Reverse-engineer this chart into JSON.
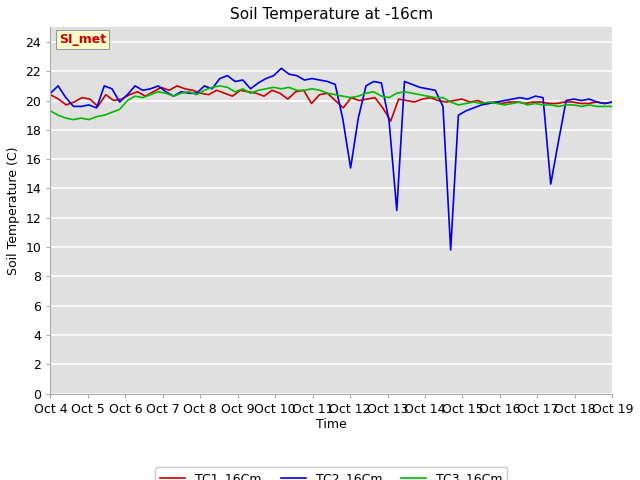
{
  "title": "Soil Temperature at -16cm",
  "xlabel": "Time",
  "ylabel": "Soil Temperature (C)",
  "ylim": [
    0,
    25
  ],
  "yticks": [
    0,
    2,
    4,
    6,
    8,
    10,
    12,
    14,
    16,
    18,
    20,
    22,
    24
  ],
  "xtick_labels": [
    "Oct 4",
    "Oct 5",
    "Oct 6",
    "Oct 7",
    "Oct 8",
    "Oct 9",
    "Oct 10",
    "Oct 11",
    "Oct 12",
    "Oct 13",
    "Oct 14",
    "Oct 15",
    "Oct 16",
    "Oct 17",
    "Oct 18",
    "Oct 19"
  ],
  "legend_labels": [
    "TC1_16Cm",
    "TC2_16Cm",
    "TC3_16Cm"
  ],
  "annotation_text": "SI_met",
  "annotation_color": "#cc0000",
  "annotation_bg": "#ffffcc",
  "annotation_edge": "#999999",
  "plot_bg_color": "#e0e0e0",
  "fig_bg_color": "#ffffff",
  "line_colors": [
    "#cc0000",
    "#0000ee",
    "#00bb00"
  ],
  "line_width": 1.2,
  "title_fontsize": 11,
  "axis_label_fontsize": 9,
  "tick_fontsize": 9,
  "legend_fontsize": 9,
  "tc1": [
    20.4,
    20.1,
    19.7,
    19.9,
    20.2,
    20.1,
    19.6,
    20.4,
    20.0,
    20.1,
    20.4,
    20.6,
    20.3,
    20.6,
    20.9,
    20.7,
    21.0,
    20.8,
    20.7,
    20.5,
    20.4,
    20.7,
    20.5,
    20.3,
    20.7,
    20.6,
    20.5,
    20.3,
    20.7,
    20.5,
    20.1,
    20.6,
    20.7,
    19.8,
    20.4,
    20.5,
    20.0,
    19.5,
    20.2,
    20.0,
    20.1,
    20.2,
    19.5,
    18.6,
    20.1,
    20.0,
    19.9,
    20.1,
    20.2,
    20.0,
    19.9,
    20.0,
    20.1,
    19.9,
    20.0,
    19.8,
    19.9,
    19.8,
    19.9,
    19.9,
    19.8,
    19.9,
    19.9,
    19.8,
    19.8,
    19.9,
    19.9,
    19.8,
    19.8,
    19.9,
    19.8,
    19.9
  ],
  "tc2": [
    20.5,
    21.0,
    20.2,
    19.6,
    19.6,
    19.7,
    19.5,
    21.0,
    20.8,
    19.9,
    20.4,
    21.0,
    20.7,
    20.8,
    21.0,
    20.6,
    20.3,
    20.6,
    20.5,
    20.5,
    21.0,
    20.8,
    21.5,
    21.7,
    21.3,
    21.4,
    20.8,
    21.2,
    21.5,
    21.7,
    22.2,
    21.8,
    21.7,
    21.4,
    21.5,
    21.4,
    21.3,
    21.1,
    18.7,
    15.4,
    18.8,
    21.0,
    21.3,
    21.2,
    18.6,
    12.5,
    21.3,
    21.1,
    20.9,
    20.8,
    20.7,
    19.6,
    9.8,
    19.0,
    19.3,
    19.5,
    19.7,
    19.8,
    19.9,
    20.0,
    20.1,
    20.2,
    20.1,
    20.3,
    20.2,
    14.3,
    17.2,
    20.0,
    20.1,
    20.0,
    20.1,
    19.9,
    19.8,
    19.9
  ],
  "tc3": [
    19.3,
    19.0,
    18.8,
    18.7,
    18.8,
    18.7,
    18.9,
    19.0,
    19.2,
    19.4,
    20.0,
    20.3,
    20.2,
    20.4,
    20.6,
    20.5,
    20.3,
    20.5,
    20.6,
    20.4,
    20.7,
    20.9,
    21.0,
    20.9,
    20.6,
    20.8,
    20.5,
    20.7,
    20.8,
    20.9,
    20.8,
    20.9,
    20.7,
    20.7,
    20.8,
    20.7,
    20.5,
    20.4,
    20.3,
    20.2,
    20.3,
    20.5,
    20.6,
    20.3,
    20.2,
    20.5,
    20.6,
    20.5,
    20.4,
    20.3,
    20.2,
    20.2,
    19.9,
    19.7,
    19.8,
    19.9,
    19.8,
    19.9,
    19.8,
    19.7,
    19.8,
    19.9,
    19.7,
    19.8,
    19.7,
    19.7,
    19.6,
    19.7,
    19.7,
    19.6,
    19.7,
    19.6,
    19.6,
    19.6
  ]
}
